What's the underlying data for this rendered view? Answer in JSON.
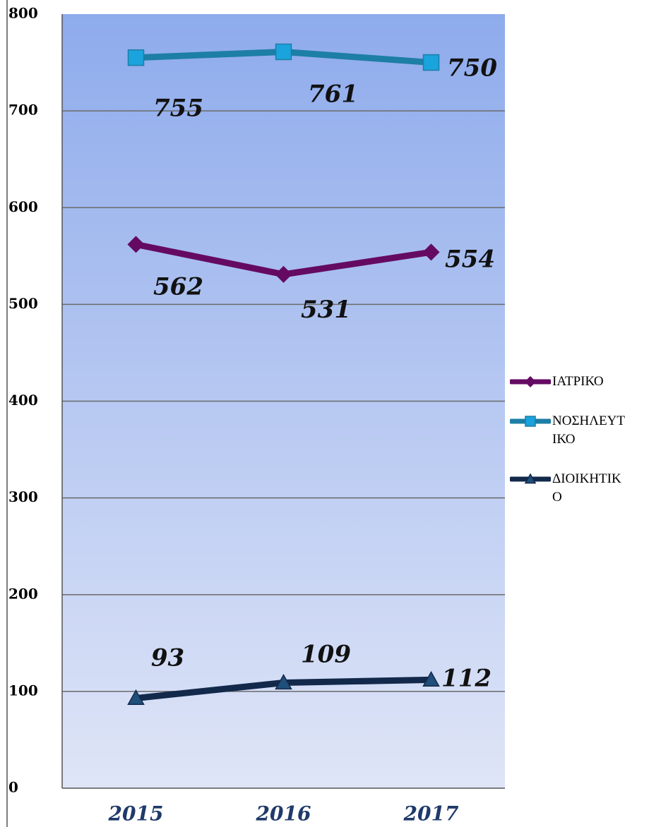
{
  "chart_data": {
    "type": "line",
    "categories": [
      "2015",
      "2016",
      "2017"
    ],
    "series": [
      {
        "name": "ΙΑΤΡΙΚΟ",
        "color": "#650a63",
        "marker": "diamond",
        "values": [
          562,
          531,
          554
        ]
      },
      {
        "name": "ΝΟΣΗΛΕΥΤΙΚΟ",
        "color": "#1d7ea6",
        "marker": "square",
        "values": [
          755,
          761,
          750
        ]
      },
      {
        "name": "ΔΙΟΙΚΗΤΙΚΟ",
        "color": "#13294b",
        "marker": "triangle",
        "values": [
          93,
          109,
          112
        ]
      }
    ],
    "ylim": [
      0,
      800
    ],
    "yticks": [
      0,
      100,
      200,
      300,
      400,
      500,
      600,
      700,
      800
    ],
    "grid": true,
    "legend": "right"
  }
}
